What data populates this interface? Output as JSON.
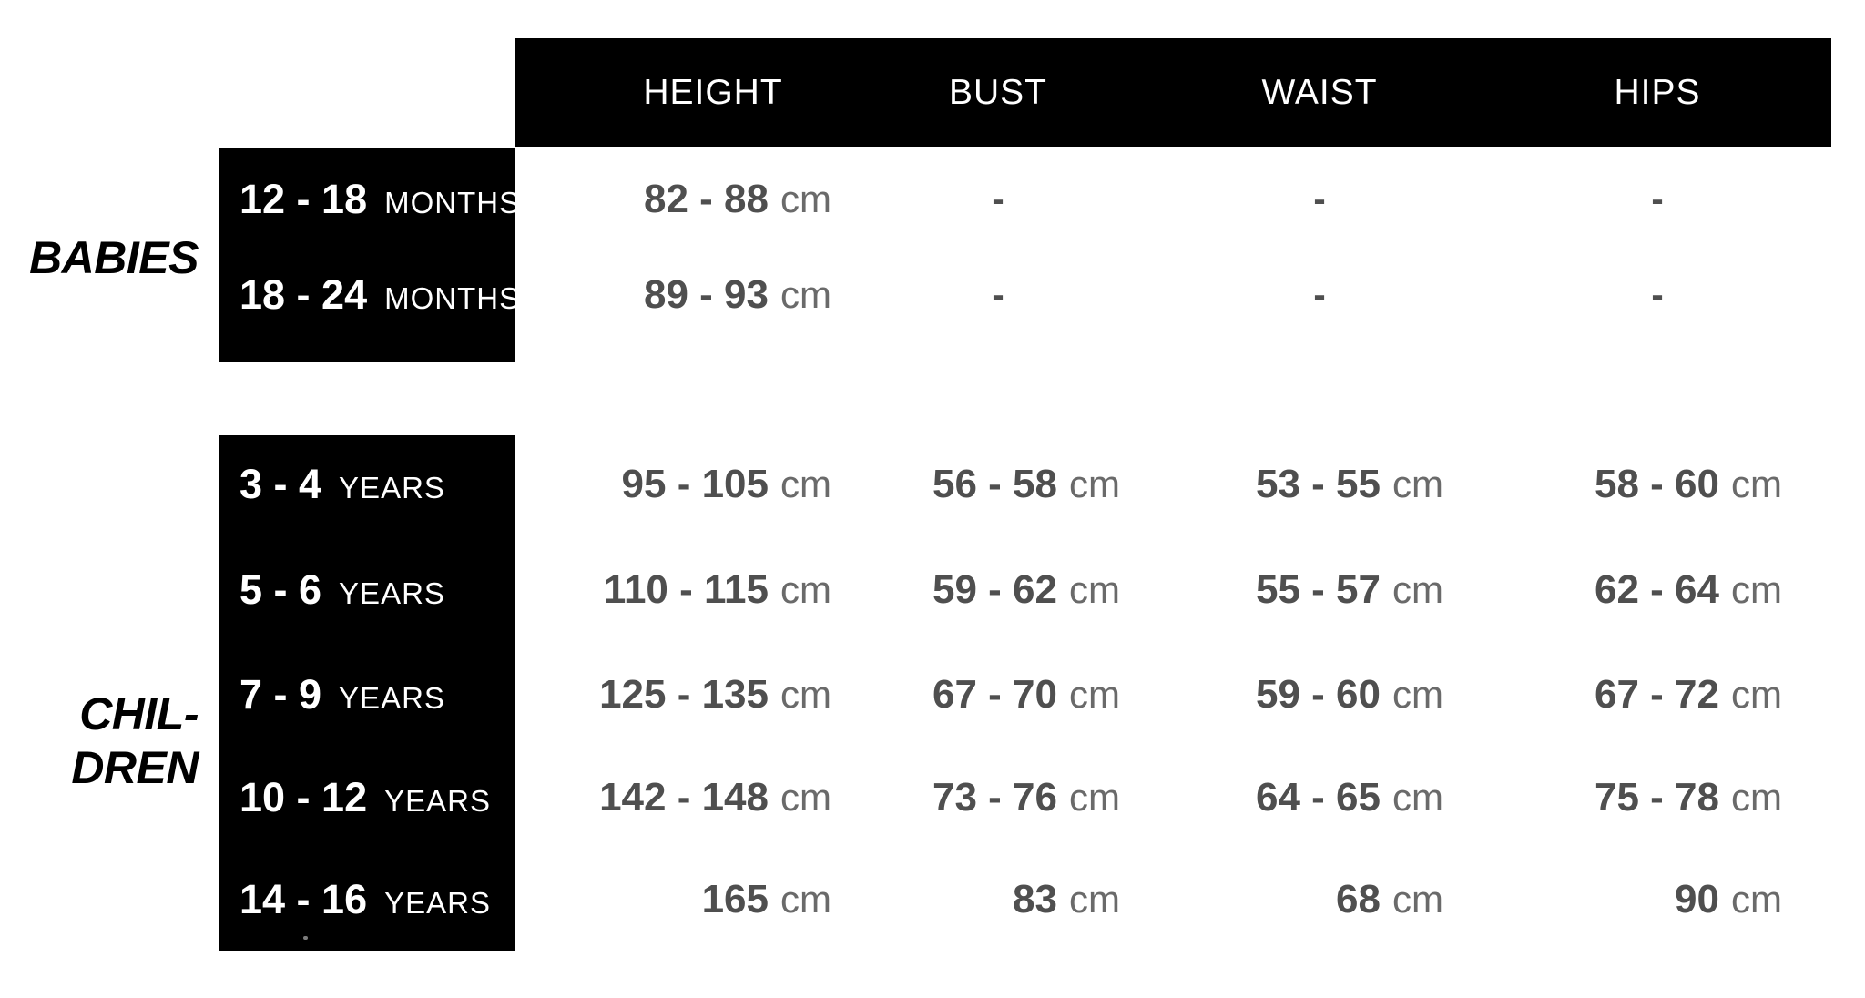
{
  "colors": {
    "header_bg": "#000000",
    "group_box_bg": "#000000",
    "header_text": "#ffffff",
    "row_label_text": "#ffffff",
    "section_label_text": "#000000",
    "value_number": "#4f4f4f",
    "value_unit": "#6a6a6a",
    "background": "#ffffff"
  },
  "chart_data": {
    "type": "table",
    "title": "",
    "units": "cm",
    "columns": [
      "HEIGHT",
      "BUST",
      "WAIST",
      "HIPS"
    ],
    "row_groups": [
      {
        "name": "babies",
        "label_lines": [
          "BABIES"
        ],
        "rows": [
          {
            "age": "12 - 18",
            "age_unit": "MONTHS",
            "cells": [
              {
                "num": "82 - 88",
                "unit": "cm"
              },
              {
                "num": "-",
                "unit": ""
              },
              {
                "num": "-",
                "unit": ""
              },
              {
                "num": "-",
                "unit": ""
              }
            ]
          },
          {
            "age": "18 - 24",
            "age_unit": "MONTHS",
            "cells": [
              {
                "num": "89 - 93",
                "unit": "cm"
              },
              {
                "num": "-",
                "unit": ""
              },
              {
                "num": "-",
                "unit": ""
              },
              {
                "num": "-",
                "unit": ""
              }
            ]
          }
        ]
      },
      {
        "name": "children",
        "label_lines": [
          "CHIL-",
          "DREN"
        ],
        "rows": [
          {
            "age": "3 - 4",
            "age_unit": "YEARS",
            "cells": [
              {
                "num": "95 - 105",
                "unit": "cm"
              },
              {
                "num": "56 - 58",
                "unit": "cm"
              },
              {
                "num": "53 - 55",
                "unit": "cm"
              },
              {
                "num": "58 - 60",
                "unit": "cm"
              }
            ]
          },
          {
            "age": "5 - 6",
            "age_unit": "YEARS",
            "cells": [
              {
                "num": "110 - 115",
                "unit": "cm"
              },
              {
                "num": "59 - 62",
                "unit": "cm"
              },
              {
                "num": "55 - 57",
                "unit": "cm"
              },
              {
                "num": "62 - 64",
                "unit": "cm"
              }
            ]
          },
          {
            "age": "7 - 9",
            "age_unit": "YEARS",
            "cells": [
              {
                "num": "125 - 135",
                "unit": "cm"
              },
              {
                "num": "67 - 70",
                "unit": "cm"
              },
              {
                "num": "59 - 60",
                "unit": "cm"
              },
              {
                "num": "67 - 72",
                "unit": "cm"
              }
            ]
          },
          {
            "age": "10 - 12",
            "age_unit": "YEARS",
            "cells": [
              {
                "num": "142 - 148",
                "unit": "cm"
              },
              {
                "num": "73 - 76",
                "unit": "cm"
              },
              {
                "num": "64 - 65",
                "unit": "cm"
              },
              {
                "num": "75 - 78",
                "unit": "cm"
              }
            ]
          },
          {
            "age": "14 - 16",
            "age_unit": "YEARS",
            "cells": [
              {
                "num": "165",
                "unit": "cm"
              },
              {
                "num": "83",
                "unit": "cm"
              },
              {
                "num": "68",
                "unit": "cm"
              },
              {
                "num": "90",
                "unit": "cm"
              }
            ]
          }
        ]
      }
    ]
  }
}
